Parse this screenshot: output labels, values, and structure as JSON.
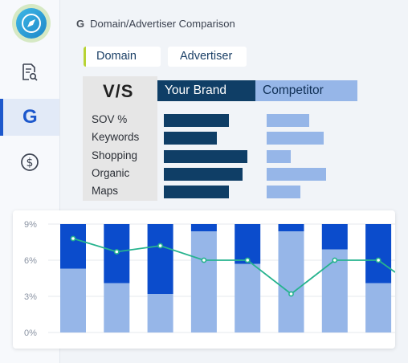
{
  "sidebar": {
    "items": [
      {
        "name": "report-search-icon",
        "active": false
      },
      {
        "name": "google-g-icon",
        "active": true,
        "label": "G"
      },
      {
        "name": "dollar-icon",
        "active": false
      }
    ]
  },
  "header": {
    "g_label": "G",
    "title": "Domain/Advertiser Comparison"
  },
  "tabs": [
    {
      "label": "Domain"
    },
    {
      "label": "Advertiser"
    }
  ],
  "comparison": {
    "vs_label": "V/S",
    "your_brand_label": "Your Brand",
    "competitor_label": "Competitor",
    "metrics": [
      {
        "label": "SOV %",
        "your_brand": 0.66,
        "competitor": 0.53
      },
      {
        "label": "Keywords",
        "your_brand": 0.54,
        "competitor": 0.71
      },
      {
        "label": "Shopping",
        "your_brand": 0.85,
        "competitor": 0.3
      },
      {
        "label": "Organic",
        "your_brand": 0.8,
        "competitor": 0.74
      },
      {
        "label": "Maps",
        "your_brand": 0.66,
        "competitor": 0.42
      }
    ]
  },
  "colors": {
    "dark_blue": "#0f3e66",
    "light_blue": "#96b6e8",
    "accent_blue": "#1d58cc",
    "line_teal": "#26b38e",
    "tab_accent": "#b8d334"
  },
  "chart_data": {
    "type": "bar",
    "ylim": [
      0,
      9
    ],
    "yticks": [
      "9%",
      "6%",
      "3%",
      "0%"
    ],
    "series": [
      {
        "values": [
          5.3,
          4.1,
          3.2,
          8.4,
          5.7,
          8.4,
          6.9,
          4.1
        ]
      },
      {
        "values": [
          3.7,
          4.9,
          5.8,
          0.6,
          3.3,
          0.6,
          2.1,
          4.9
        ]
      },
      {
        "values": [
          7.8,
          6.7,
          7.2,
          6.0,
          6.0,
          3.2,
          6.0,
          6.0,
          5.0
        ]
      }
    ]
  }
}
